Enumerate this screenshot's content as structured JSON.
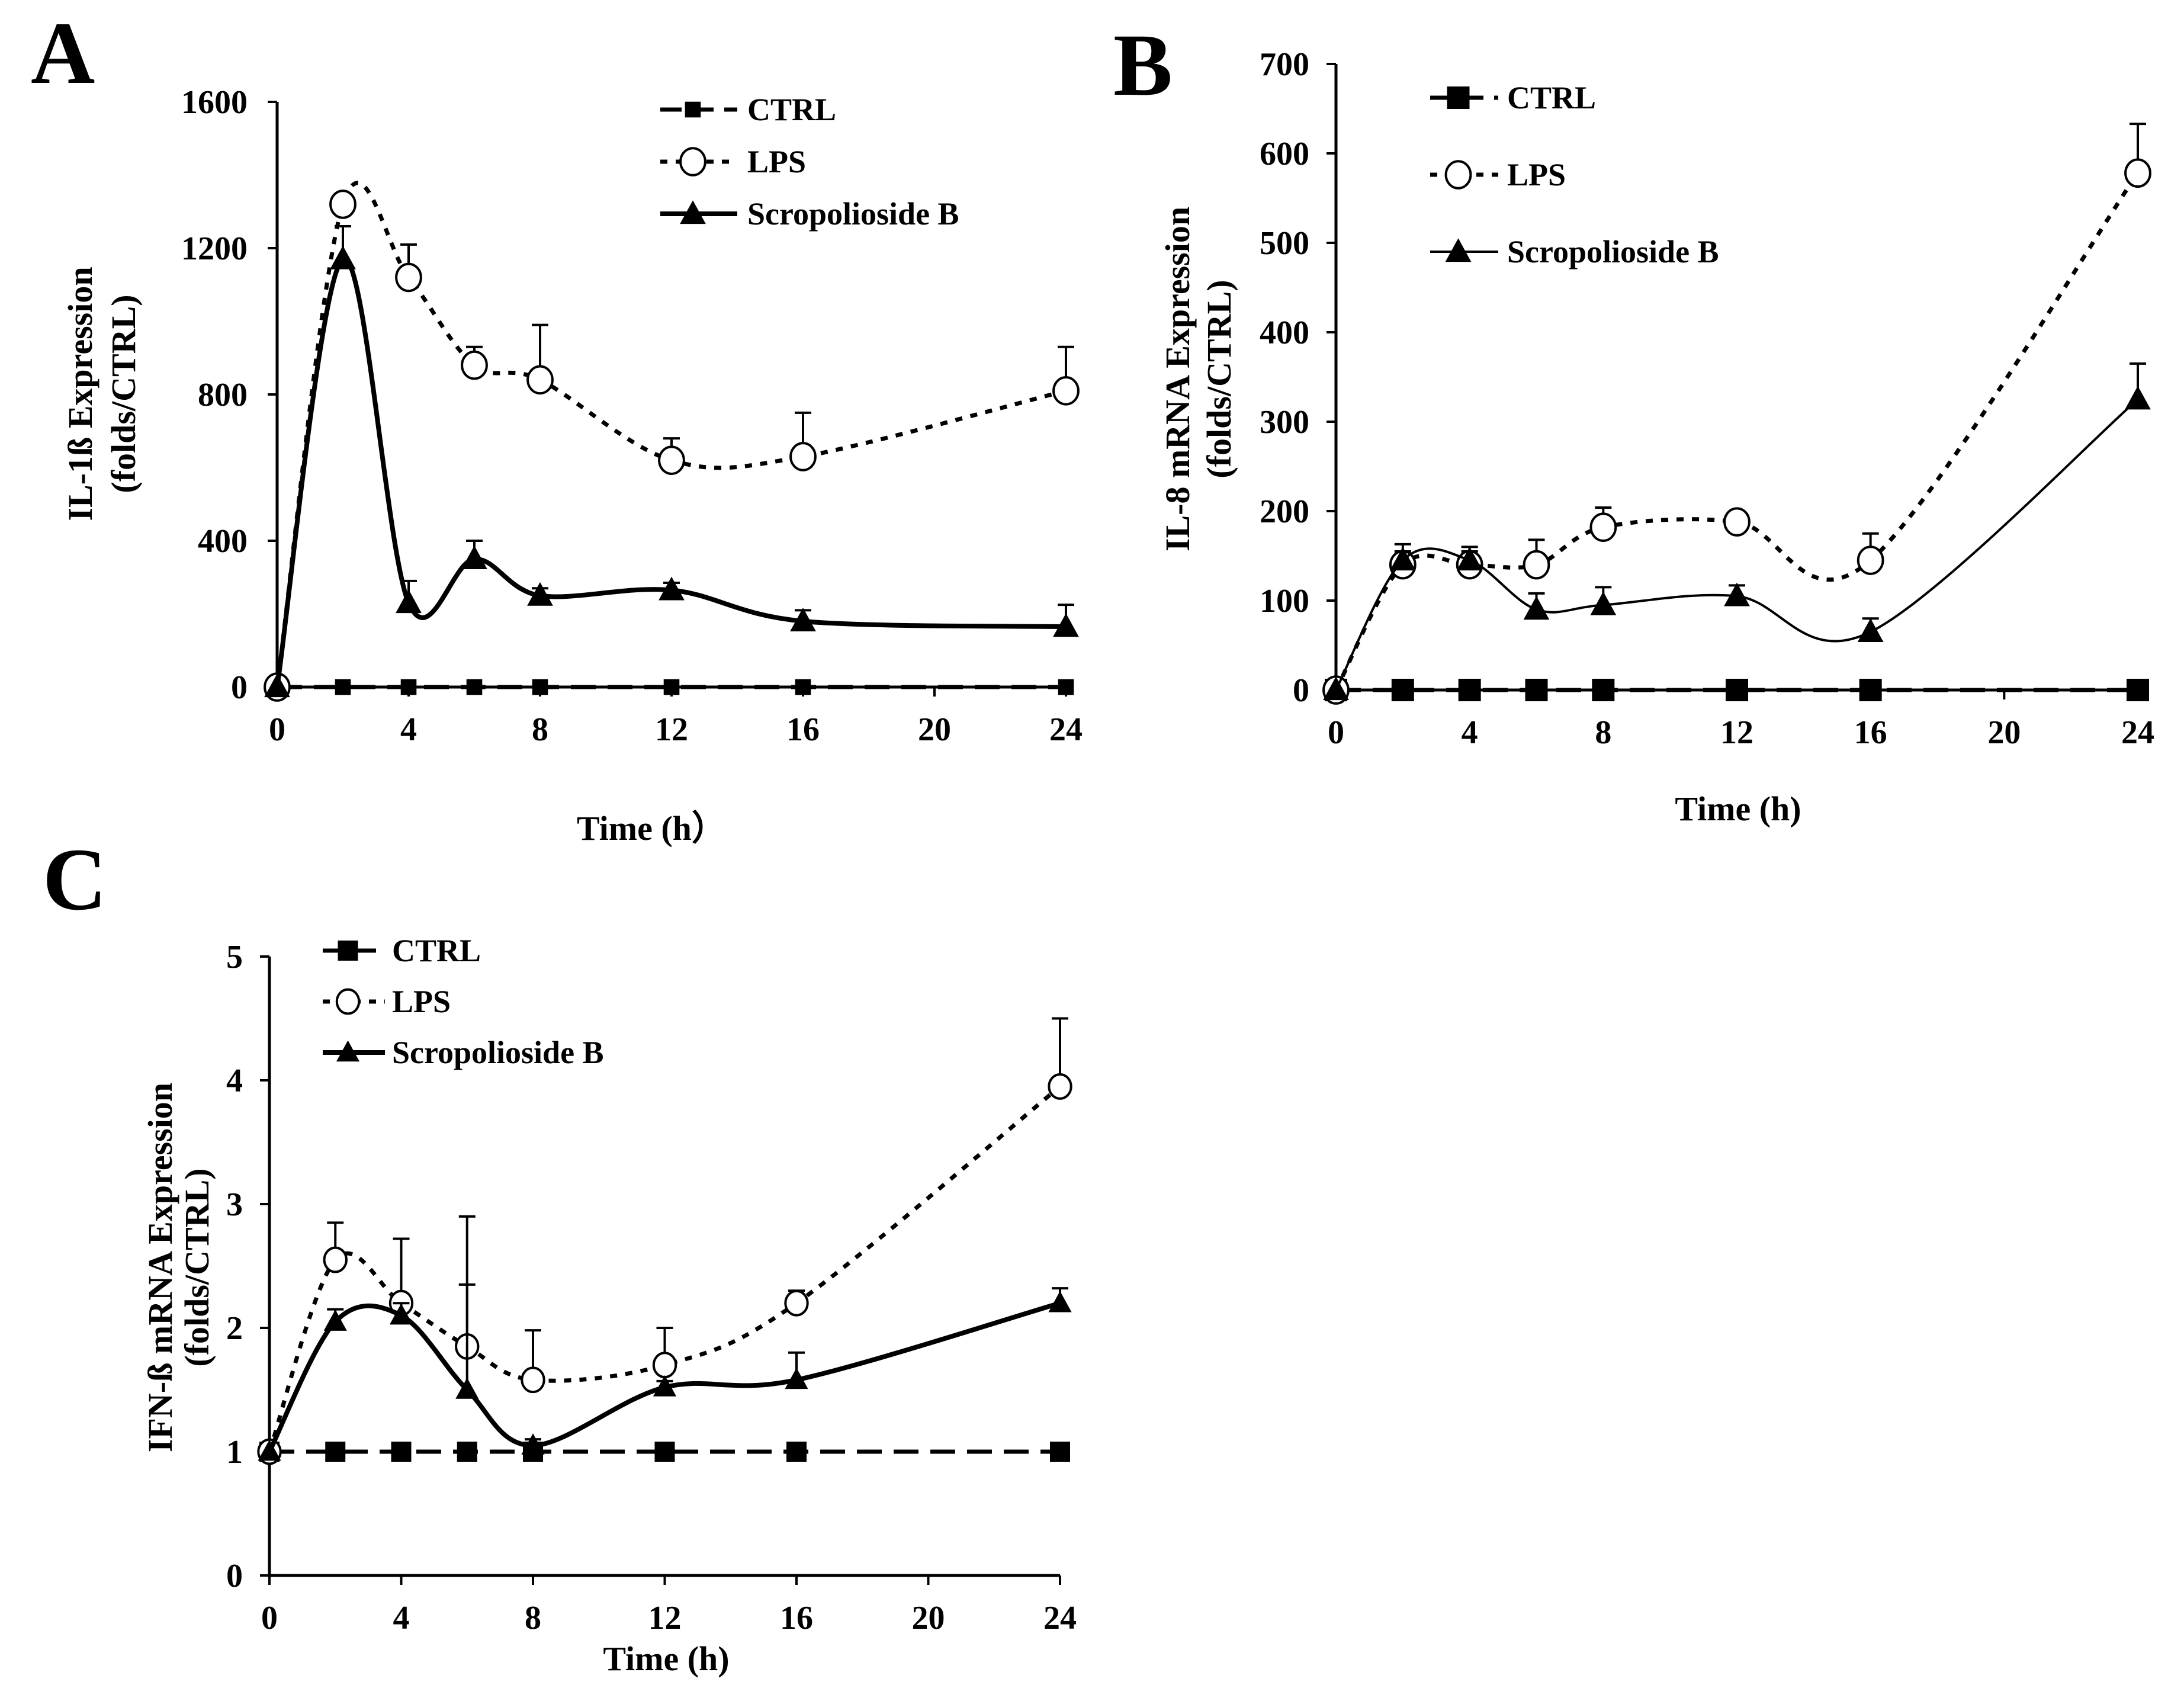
{
  "figure": {
    "panels": [
      "A",
      "B",
      "C"
    ]
  },
  "colors": {
    "ink": "#000000",
    "background": "#ffffff",
    "open_marker_fill": "#ffffff"
  },
  "chart_data": [
    {
      "panel": "A",
      "type": "line",
      "title": "",
      "xlabel": "Time (h）",
      "ylabel": "IL-1ß Expression",
      "ylabel2": "(folds/CTRL)",
      "xlim": [
        0,
        24
      ],
      "ylim": [
        0,
        1600
      ],
      "xticks": [
        0,
        4,
        8,
        12,
        16,
        20,
        24
      ],
      "yticks": [
        0,
        400,
        800,
        1200,
        1600
      ],
      "legend": "top-right",
      "series": [
        {
          "name": "CTRL",
          "style": "dash",
          "marker": "square-small",
          "x": [
            0,
            2,
            4,
            6,
            8,
            12,
            16,
            24
          ],
          "y": [
            0,
            0,
            0,
            0,
            0,
            0,
            0,
            0
          ],
          "err": [
            0,
            0,
            0,
            0,
            0,
            0,
            0,
            0
          ]
        },
        {
          "name": "LPS",
          "style": "dot",
          "marker": "circle-open",
          "x": [
            0,
            2,
            4,
            6,
            8,
            12,
            16,
            24
          ],
          "y": [
            0,
            1320,
            1120,
            880,
            840,
            620,
            630,
            810
          ],
          "err": [
            0,
            0,
            90,
            50,
            150,
            60,
            120,
            120
          ]
        },
        {
          "name": "Scropolioside B",
          "style": "solid",
          "marker": "triangle",
          "x": [
            0,
            2,
            4,
            6,
            8,
            12,
            16,
            24
          ],
          "y": [
            0,
            1170,
            230,
            350,
            250,
            265,
            180,
            165
          ],
          "err": [
            0,
            90,
            60,
            50,
            20,
            20,
            30,
            60
          ]
        }
      ]
    },
    {
      "panel": "B",
      "type": "line",
      "title": "",
      "xlabel": "Time (h)",
      "ylabel": "IL-8 mRNA Expression",
      "ylabel2": "(folds/CTRL)",
      "xlim": [
        0,
        24
      ],
      "ylim": [
        0,
        700
      ],
      "xticks": [
        0,
        4,
        8,
        12,
        16,
        20,
        24
      ],
      "yticks": [
        0,
        100,
        200,
        300,
        400,
        500,
        600,
        700
      ],
      "legend": "top-left",
      "series": [
        {
          "name": "CTRL",
          "style": "dash",
          "marker": "square",
          "x": [
            0,
            2,
            4,
            6,
            8,
            12,
            16,
            24
          ],
          "y": [
            0,
            0,
            0,
            0,
            0,
            0,
            0,
            0
          ],
          "err": [
            0,
            0,
            0,
            0,
            0,
            0,
            0,
            0
          ]
        },
        {
          "name": "LPS",
          "style": "dot",
          "marker": "circle-open",
          "x": [
            0,
            2,
            4,
            6,
            8,
            12,
            16,
            24
          ],
          "y": [
            0,
            140,
            140,
            140,
            182,
            188,
            145,
            578
          ],
          "err": [
            0,
            15,
            15,
            28,
            22,
            10,
            30,
            55
          ]
        },
        {
          "name": "Scropolioside B",
          "style": "thin-solid",
          "marker": "triangle",
          "x": [
            0,
            2,
            4,
            6,
            8,
            12,
            16,
            24
          ],
          "y": [
            0,
            145,
            145,
            90,
            95,
            105,
            65,
            325
          ],
          "err": [
            0,
            18,
            15,
            18,
            20,
            12,
            15,
            40
          ]
        }
      ]
    },
    {
      "panel": "C",
      "type": "line",
      "title": "",
      "xlabel": "Time (h)",
      "ylabel": "IFN-ß mRNA Expression",
      "ylabel2": "(folds/CTRL)",
      "xlim": [
        0,
        24
      ],
      "ylim": [
        0,
        5
      ],
      "xticks": [
        0,
        4,
        8,
        12,
        16,
        20,
        24
      ],
      "yticks": [
        0,
        1,
        2,
        3,
        4,
        5
      ],
      "legend": "top-left",
      "series": [
        {
          "name": "CTRL",
          "style": "dash",
          "marker": "square",
          "x": [
            0,
            2,
            4,
            6,
            8,
            12,
            16,
            24
          ],
          "y": [
            1,
            1,
            1,
            1,
            1,
            1,
            1,
            1
          ],
          "err": [
            0,
            0,
            0,
            0,
            0,
            0,
            0,
            0
          ]
        },
        {
          "name": "LPS",
          "style": "dot",
          "marker": "circle-open",
          "x": [
            0,
            2,
            4,
            6,
            8,
            12,
            16,
            24
          ],
          "y": [
            1,
            2.55,
            2.2,
            1.85,
            1.58,
            1.7,
            2.2,
            3.95
          ],
          "err": [
            0,
            0.3,
            0.52,
            1.05,
            0.4,
            0.3,
            0.1,
            0.55
          ]
        },
        {
          "name": "Scropolioside B",
          "style": "solid",
          "marker": "triangle",
          "x": [
            0,
            2,
            4,
            6,
            8,
            12,
            16,
            24
          ],
          "y": [
            1,
            2.05,
            2.1,
            1.5,
            1.05,
            1.52,
            1.58,
            2.2
          ],
          "err": [
            0,
            0.1,
            0.1,
            0.85,
            0.05,
            0.05,
            0.22,
            0.12
          ]
        }
      ]
    }
  ]
}
